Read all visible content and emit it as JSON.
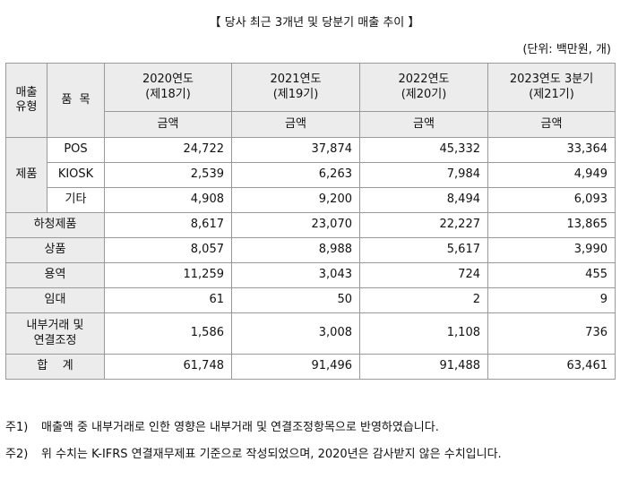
{
  "title": "【 당사 최근 3개년 및 당분기 매출 추이 】",
  "unit": "(단위: 백만원, 개)",
  "header": {
    "category": "매출\n유형",
    "item": "품  목",
    "periods": [
      {
        "year": "2020연도",
        "term": "(제18기)"
      },
      {
        "year": "2021연도",
        "term": "(제19기)"
      },
      {
        "year": "2022연도",
        "term": "(제20기)"
      },
      {
        "year": "2023연도 3분기",
        "term": "(제21기)"
      }
    ],
    "amount_label": "금액"
  },
  "product_group": "제품",
  "rows": [
    {
      "item": "POS",
      "values": [
        "24,722",
        "37,874",
        "45,332",
        "33,364"
      ]
    },
    {
      "item": "KIOSK",
      "values": [
        "2,539",
        "6,263",
        "7,984",
        "4,949"
      ]
    },
    {
      "item": "기타",
      "values": [
        "4,908",
        "9,200",
        "8,494",
        "6,093"
      ]
    },
    {
      "item": "하청제품",
      "values": [
        "8,617",
        "23,070",
        "22,227",
        "13,865"
      ]
    },
    {
      "item": "상품",
      "values": [
        "8,057",
        "8,988",
        "5,617",
        "3,990"
      ]
    },
    {
      "item": "용역",
      "values": [
        "11,259",
        "3,043",
        "724",
        "455"
      ]
    },
    {
      "item": "임대",
      "values": [
        "61",
        "50",
        "2",
        "9"
      ]
    },
    {
      "item": "내부거래 및\n연결조정",
      "values": [
        "1,586",
        "3,008",
        "1,108",
        "736"
      ]
    },
    {
      "item": "합    계",
      "values": [
        "61,748",
        "91,496",
        "91,488",
        "63,461"
      ]
    }
  ],
  "notes": [
    {
      "mark": "주1)",
      "text": "매출액 중 내부거래로 인한 영향은 내부거래 및 연결조정항목으로 반영하였습니다."
    },
    {
      "mark": "주2)",
      "text": "위 수치는 K-IFRS 연결재무제표 기준으로 작성되었으며, 2020년은 감사받지 않은 수치입니다."
    }
  ]
}
